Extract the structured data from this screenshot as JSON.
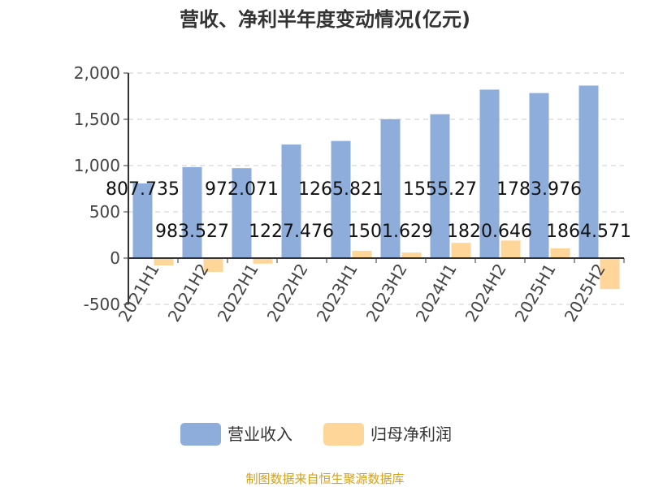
{
  "chart_data": {
    "type": "bar",
    "title": "营收、净利半年度变动情况(亿元)",
    "categories": [
      "2021H1",
      "2021H2",
      "2022H1",
      "2022H2",
      "2023H1",
      "2023H2",
      "2024H1",
      "2024H2",
      "2025H1",
      "2025H2"
    ],
    "series": [
      {
        "name": "营业收入",
        "color": "#8eadda",
        "values": [
          807.735,
          983.527,
          972.071,
          1227.476,
          1265.821,
          1501.629,
          1555.27,
          1820.646,
          1783.976,
          1864.571
        ],
        "labels": [
          "807.735",
          "983.527",
          "972.071",
          "1227.476",
          "1265.821",
          "1501.629",
          "1555.27",
          "1820.646",
          "1783.976",
          "1864.571"
        ]
      },
      {
        "name": "归母净利润",
        "color": "#ffd699",
        "values": [
          -79,
          -150,
          -60,
          3,
          80,
          60,
          165,
          190,
          105,
          -335
        ]
      }
    ],
    "yticks": [
      "2,000",
      "1,500",
      "1,000",
      "500",
      "0",
      "-500"
    ],
    "ytick_values": [
      2000,
      1500,
      1000,
      500,
      0,
      -500
    ],
    "ylim": [
      -500,
      2000
    ],
    "grid": true,
    "legend": "bottom"
  },
  "footer": "制图数据来自恒生聚源数据库"
}
